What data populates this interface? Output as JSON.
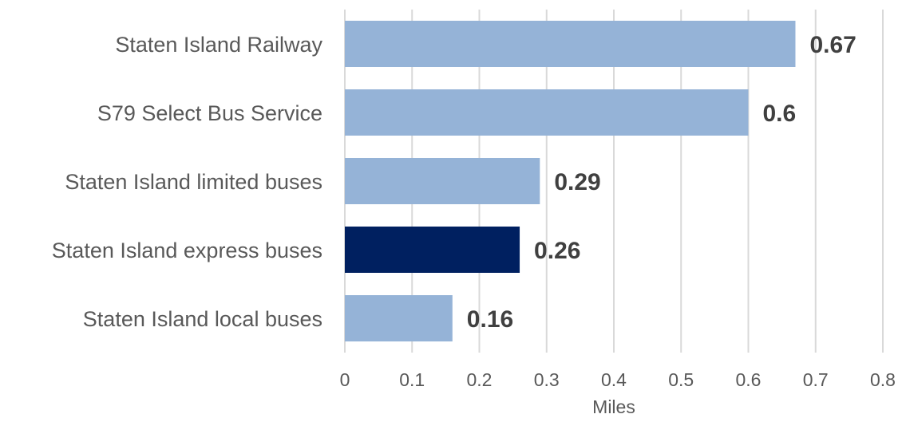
{
  "chart_data": {
    "type": "bar",
    "orientation": "horizontal",
    "categories": [
      "Staten Island Railway",
      "S79 Select Bus Service",
      "Staten Island limited buses",
      "Staten Island express buses",
      "Staten Island local buses"
    ],
    "values": [
      0.67,
      0.6,
      0.29,
      0.26,
      0.16
    ],
    "data_labels": [
      "0.67",
      "0.6",
      "0.29",
      "0.26",
      "0.16"
    ],
    "highlight_index": 3,
    "title": "",
    "xlabel": "Miles",
    "ylabel": "",
    "xlim": [
      0,
      0.8
    ],
    "xticks": [
      "0",
      "0.1",
      "0.2",
      "0.3",
      "0.4",
      "0.5",
      "0.6",
      "0.7",
      "0.8"
    ],
    "grid": "vertical",
    "legend": "none",
    "colors": {
      "bar": "#95b3d7",
      "highlight": "#002060"
    }
  }
}
